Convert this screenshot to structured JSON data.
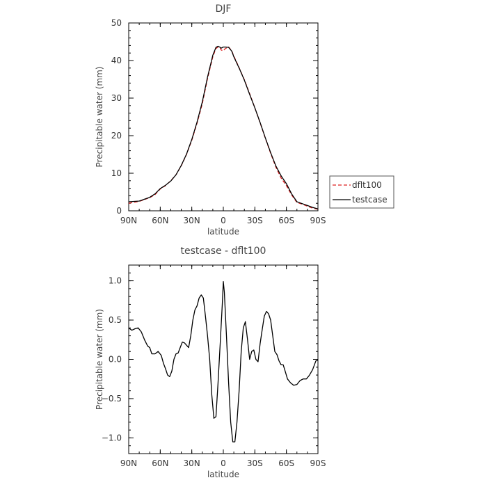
{
  "chart_data": [
    {
      "type": "line",
      "title": "DJF",
      "xlabel": "latitude",
      "ylabel": "Precipitable water (mm)",
      "xlim": [
        90,
        -90
      ],
      "ylim": [
        0,
        50
      ],
      "xtick_labels": [
        "90N",
        "60N",
        "30N",
        "0",
        "30S",
        "60S",
        "90S"
      ],
      "xtick_values": [
        90,
        60,
        30,
        0,
        -30,
        -60,
        -90
      ],
      "ytick_values": [
        0,
        10,
        20,
        30,
        40,
        50
      ],
      "ytick_labels": [
        "0",
        "10",
        "20",
        "30",
        "40",
        "50"
      ],
      "x": [
        90,
        80,
        70,
        65,
        60,
        55,
        50,
        45,
        40,
        35,
        30,
        25,
        20,
        15,
        10,
        7,
        5,
        3,
        2,
        0,
        -2,
        -5,
        -8,
        -10,
        -15,
        -20,
        -25,
        -30,
        -35,
        -40,
        -45,
        -50,
        -55,
        -60,
        -65,
        -70,
        -75,
        -80,
        -85,
        -90
      ],
      "series": [
        {
          "name": "dflt100",
          "color": "#dd2222",
          "dash": "dashed",
          "values": [
            2.0,
            2.5,
            3.5,
            4.3,
            5.8,
            6.7,
            8.0,
            9.6,
            12.0,
            15.0,
            18.8,
            23.3,
            28.5,
            35.2,
            41.0,
            43.2,
            43.6,
            43.3,
            42.8,
            42.6,
            43.2,
            43.6,
            42.6,
            41.2,
            38.1,
            34.9,
            31.2,
            27.4,
            23.4,
            19.3,
            15.3,
            11.6,
            8.7,
            6.7,
            4.2,
            2.2,
            1.8,
            1.2,
            0.7,
            0.4
          ]
        },
        {
          "name": "testcase",
          "color": "#000000",
          "dash": "solid",
          "values": [
            2.4,
            2.6,
            3.6,
            4.5,
            5.9,
            6.8,
            7.9,
            9.6,
            12.1,
            15.1,
            19.0,
            23.6,
            29.0,
            35.6,
            41.4,
            43.5,
            43.8,
            43.5,
            43.3,
            43.6,
            43.6,
            43.5,
            42.5,
            41.0,
            38.0,
            34.8,
            31.0,
            27.4,
            23.5,
            19.4,
            15.5,
            11.9,
            9.3,
            7.2,
            4.5,
            2.4,
            1.9,
            1.4,
            0.9,
            0.5
          ]
        }
      ],
      "legend": {
        "placement": "right",
        "entries": [
          {
            "label": "dflt100",
            "color": "#dd2222",
            "dash": "dashed"
          },
          {
            "label": "testcase",
            "color": "#000000",
            "dash": "solid"
          }
        ]
      }
    },
    {
      "type": "line",
      "title": "testcase - dflt100",
      "xlabel": "latitude",
      "ylabel": "Precipitable water (mm)",
      "xlim": [
        90,
        -90
      ],
      "ylim": [
        -1.2,
        1.2
      ],
      "xtick_labels": [
        "90N",
        "60N",
        "30N",
        "0",
        "30S",
        "60S",
        "90S"
      ],
      "xtick_values": [
        90,
        60,
        30,
        0,
        -30,
        -60,
        -90
      ],
      "ytick_values": [
        -1.0,
        -0.5,
        0.0,
        0.5,
        1.0
      ],
      "ytick_labels": [
        "−1.0",
        "−0.5",
        "0.0",
        "0.5",
        "1.0"
      ],
      "x": [
        90,
        87,
        84,
        81,
        78,
        75,
        72,
        70,
        68,
        65,
        62,
        59,
        57,
        55,
        53,
        51,
        49,
        47,
        45,
        43,
        41,
        39,
        37,
        35,
        33,
        31,
        29,
        27,
        25,
        23,
        21,
        19,
        17,
        15,
        13,
        11,
        9,
        7,
        5,
        3,
        1,
        0,
        -1,
        -3,
        -5,
        -7,
        -9,
        -11,
        -13,
        -15,
        -17,
        -19,
        -21,
        -23,
        -25,
        -27,
        -29,
        -31,
        -33,
        -35,
        -37,
        -39,
        -41,
        -43,
        -45,
        -47,
        -49,
        -51,
        -53,
        -55,
        -57,
        -59,
        -61,
        -64,
        -67,
        -70,
        -73,
        -76,
        -79,
        -82,
        -85,
        -88,
        -90
      ],
      "series": [
        {
          "name": "testcase - dflt100",
          "color": "#000000",
          "dash": "solid",
          "values": [
            0.4,
            0.37,
            0.39,
            0.4,
            0.35,
            0.25,
            0.17,
            0.15,
            0.07,
            0.07,
            0.1,
            0.05,
            -0.05,
            -0.12,
            -0.2,
            -0.22,
            -0.15,
            0.0,
            0.07,
            0.08,
            0.15,
            0.22,
            0.21,
            0.18,
            0.15,
            0.3,
            0.5,
            0.63,
            0.68,
            0.78,
            0.82,
            0.78,
            0.55,
            0.3,
            0.0,
            -0.45,
            -0.75,
            -0.73,
            -0.3,
            0.2,
            0.7,
            0.99,
            0.85,
            0.3,
            -0.3,
            -0.8,
            -1.05,
            -1.05,
            -0.8,
            -0.4,
            0.1,
            0.4,
            0.48,
            0.25,
            0.0,
            0.1,
            0.12,
            0.0,
            -0.03,
            0.2,
            0.38,
            0.55,
            0.61,
            0.58,
            0.5,
            0.3,
            0.1,
            0.06,
            -0.02,
            -0.07,
            -0.07,
            -0.16,
            -0.25,
            -0.3,
            -0.33,
            -0.32,
            -0.27,
            -0.25,
            -0.25,
            -0.2,
            -0.13,
            -0.02,
            -0.01
          ]
        }
      ]
    }
  ]
}
